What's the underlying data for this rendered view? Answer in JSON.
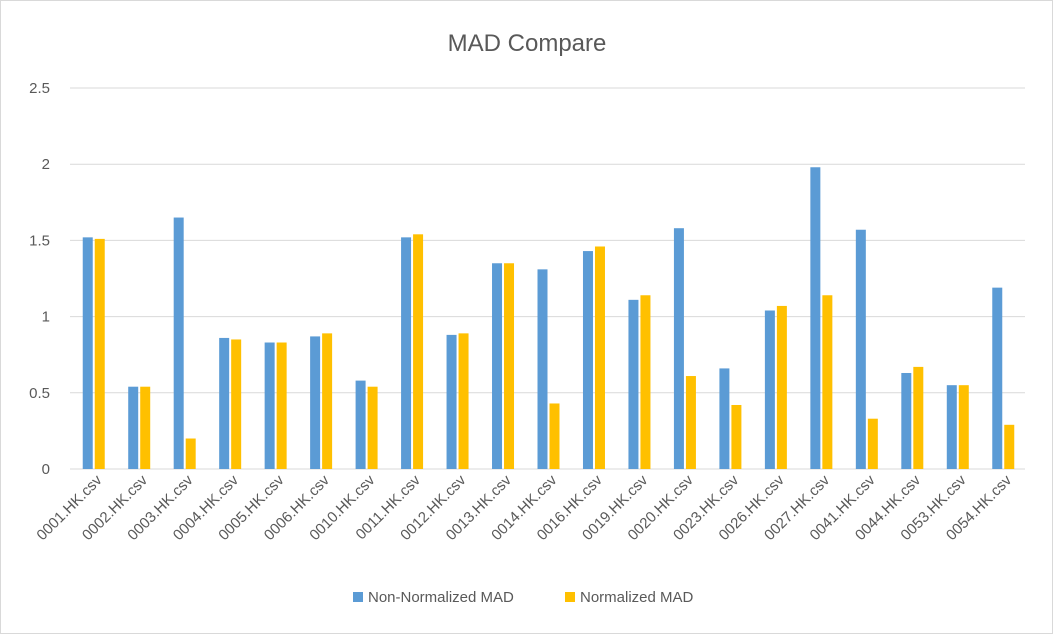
{
  "chart_data": {
    "type": "bar",
    "title": "MAD Compare",
    "xlabel": "",
    "ylabel": "",
    "ylim": [
      0,
      2.5
    ],
    "yticks": [
      "0",
      "0.5",
      "1",
      "1.5",
      "2",
      "2.5"
    ],
    "grid": true,
    "legend_position": "bottom",
    "categories": [
      "0001.HK.csv",
      "0002.HK.csv",
      "0003.HK.csv",
      "0004.HK.csv",
      "0005.HK.csv",
      "0006.HK.csv",
      "0010.HK.csv",
      "0011.HK.csv",
      "0012.HK.csv",
      "0013.HK.csv",
      "0014.HK.csv",
      "0016.HK.csv",
      "0019.HK.csv",
      "0020.HK.csv",
      "0023.HK.csv",
      "0026.HK.csv",
      "0027.HK.csv",
      "0041.HK.csv",
      "0044.HK.csv",
      "0053.HK.csv",
      "0054.HK.csv"
    ],
    "series": [
      {
        "name": "Non-Normalized MAD",
        "color": "#5b9bd5",
        "values": [
          1.52,
          0.54,
          1.65,
          0.86,
          0.83,
          0.87,
          0.58,
          1.52,
          0.88,
          1.35,
          1.31,
          1.43,
          1.11,
          1.58,
          0.66,
          1.04,
          1.98,
          1.57,
          0.63,
          0.55,
          1.19
        ]
      },
      {
        "name": "Normalized MAD",
        "color": "#ffc000",
        "values": [
          1.51,
          0.54,
          0.2,
          0.85,
          0.83,
          0.89,
          0.54,
          1.54,
          0.89,
          1.35,
          0.43,
          1.46,
          1.14,
          0.61,
          0.42,
          1.07,
          1.14,
          0.33,
          0.67,
          0.55,
          0.29
        ]
      }
    ]
  }
}
